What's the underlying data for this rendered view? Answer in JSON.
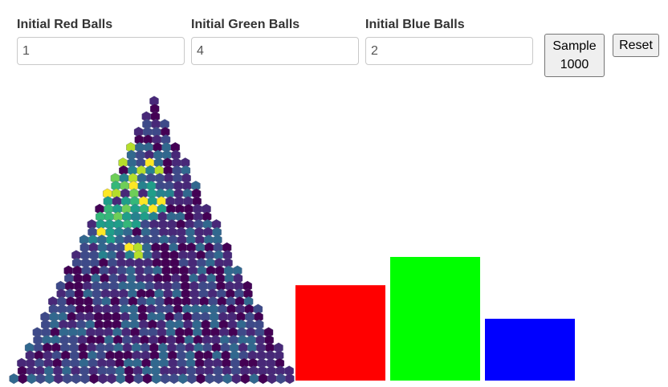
{
  "controls": {
    "red": {
      "label": "Initial Red Balls",
      "value": "1"
    },
    "green": {
      "label": "Initial Green Balls",
      "value": "4"
    },
    "blue": {
      "label": "Initial Blue Balls",
      "value": "2"
    },
    "sample_button": {
      "line1": "Sample",
      "line2": "1000"
    },
    "reset_button": {
      "label": "Reset"
    }
  },
  "histogram": {
    "colormap": "viridis",
    "description_free": true
  },
  "chart_data": {
    "type": "bar",
    "categories": [
      "red",
      "green",
      "blue"
    ],
    "values": [
      1,
      4,
      2
    ],
    "colors": [
      "#ff0000",
      "#00ff00",
      "#0000ff"
    ],
    "relative_heights": [
      0.54,
      0.7,
      0.35
    ]
  }
}
